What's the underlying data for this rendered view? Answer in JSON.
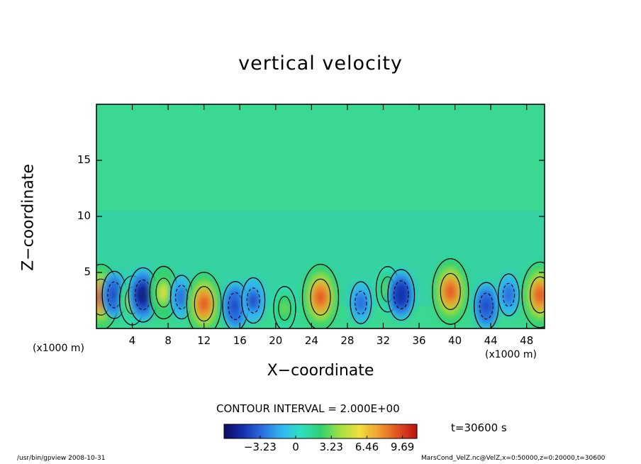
{
  "chart_data": {
    "type": "heatmap",
    "title": "vertical velocity",
    "xlabel": "X−coordinate",
    "ylabel": "Z−coordinate",
    "x_unit_label": "(x1000 m)",
    "xlim": [
      0,
      50
    ],
    "ylim": [
      0,
      20
    ],
    "x_ticks": [
      "4",
      "8",
      "12",
      "16",
      "20",
      "24",
      "28",
      "32",
      "36",
      "40",
      "44",
      "48"
    ],
    "y_ticks": [
      "5",
      "10",
      "15"
    ],
    "contour_interval_text": "CONTOUR INTERVAL = 2.000E+00",
    "colorbar": {
      "ticks": [
        "−3.23",
        "0",
        "3.23",
        "6.46",
        "9.69"
      ],
      "range": [
        -6.5,
        11.0
      ],
      "colors": [
        "#0a0a60",
        "#1630b0",
        "#2a70e0",
        "#32b8f0",
        "#2ee0c0",
        "#30d070",
        "#a0e040",
        "#f0e040",
        "#f0a030",
        "#e05020",
        "#c01010"
      ]
    },
    "blobs": [
      {
        "x": 0.5,
        "z": 2.8,
        "value": 9.69
      },
      {
        "x": 2.0,
        "z": 3.0,
        "value": -4.5
      },
      {
        "x": 4.0,
        "z": 2.5,
        "value": 5.0
      },
      {
        "x": 5.2,
        "z": 3.0,
        "value": -6.5
      },
      {
        "x": 7.5,
        "z": 3.2,
        "value": 6.0
      },
      {
        "x": 9.5,
        "z": 2.8,
        "value": -3.5
      },
      {
        "x": 12.0,
        "z": 2.2,
        "value": 9.0
      },
      {
        "x": 15.5,
        "z": 2.0,
        "value": -5.0
      },
      {
        "x": 17.5,
        "z": 2.5,
        "value": -4.0
      },
      {
        "x": 21.0,
        "z": 1.8,
        "value": 3.5
      },
      {
        "x": 25.0,
        "z": 2.8,
        "value": 9.69
      },
      {
        "x": 29.5,
        "z": 2.3,
        "value": -3.0
      },
      {
        "x": 32.5,
        "z": 3.5,
        "value": 4.0
      },
      {
        "x": 34.0,
        "z": 3.0,
        "value": -5.5
      },
      {
        "x": 39.5,
        "z": 3.3,
        "value": 9.69
      },
      {
        "x": 43.5,
        "z": 2.0,
        "value": -4.5
      },
      {
        "x": 46.0,
        "z": 3.0,
        "value": -3.0
      },
      {
        "x": 49.5,
        "z": 3.0,
        "value": 9.69
      }
    ],
    "time_text": "t=30600 s"
  },
  "footer": {
    "left": "/usr/bin/gpview   2008-10-31",
    "right": "MarsCond_VelZ.nc@VelZ,x=0:50000,z=0:20000,t=30600"
  }
}
